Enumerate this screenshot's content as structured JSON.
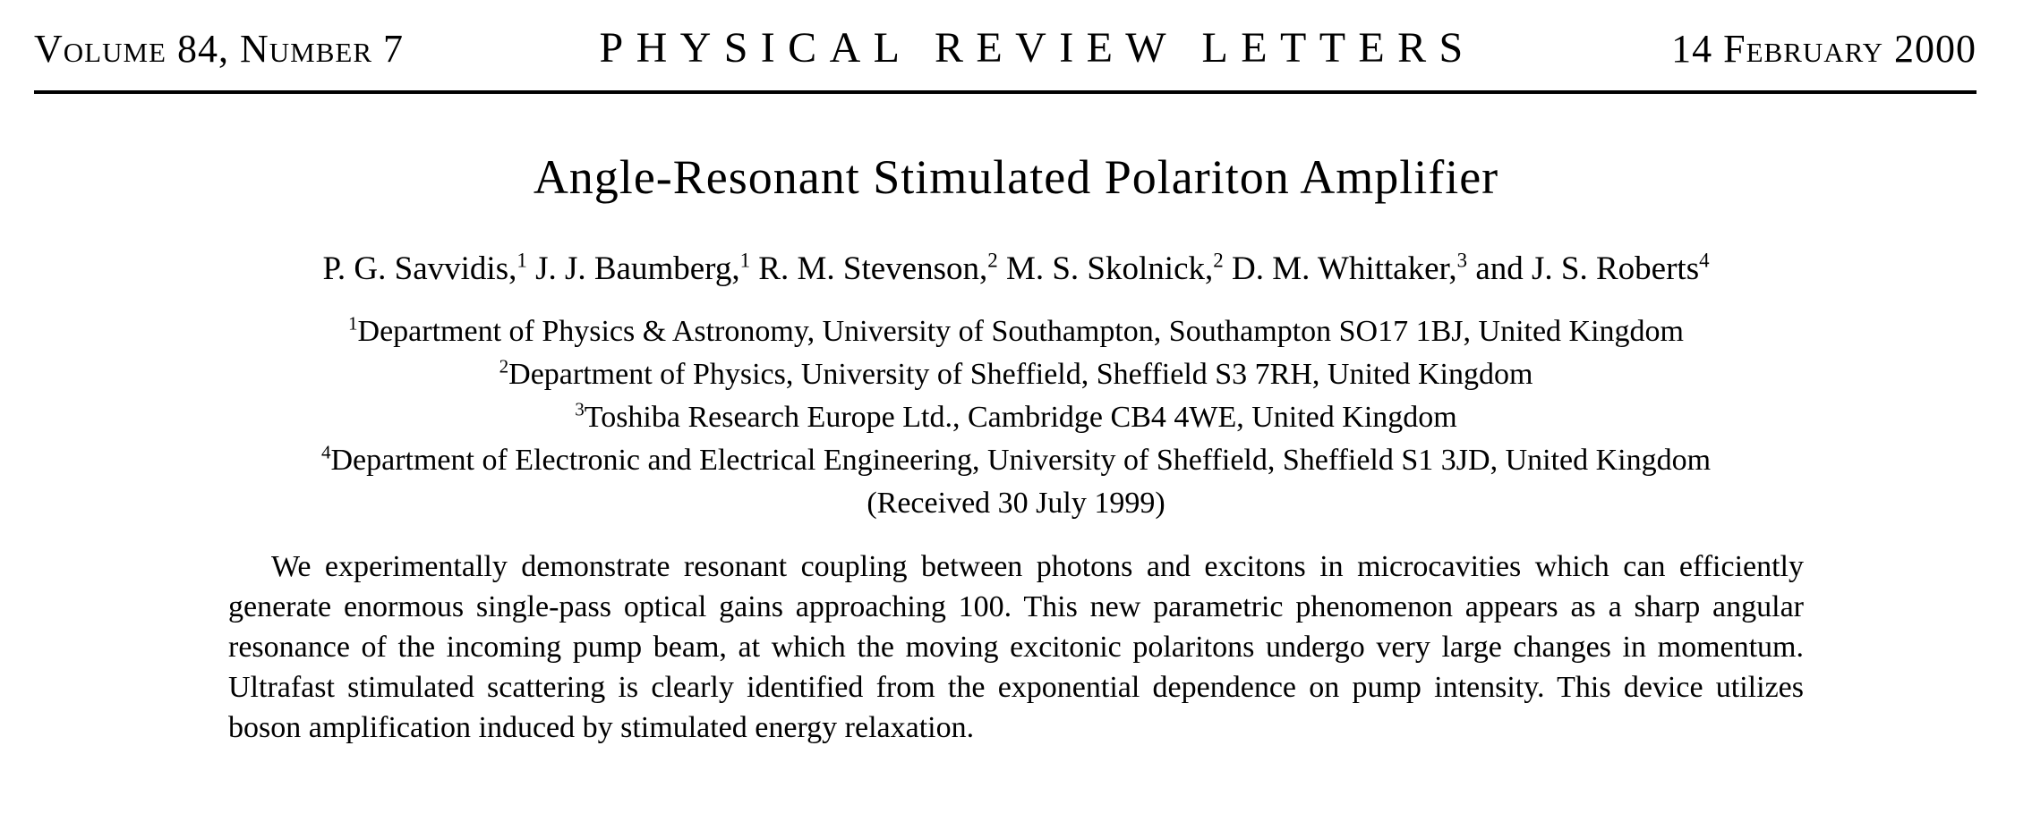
{
  "colors": {
    "paper": "#ffffff",
    "ink": "#000000"
  },
  "masthead": {
    "volume_issue": "Volume 84, Number 7",
    "journal_title": "PHYSICAL REVIEW LETTERS",
    "issue_date": "14 February 2000"
  },
  "article": {
    "title": "Angle-Resonant Stimulated Polariton Amplifier",
    "authors": [
      {
        "text": "P. G. Savvidis,",
        "sup": "1"
      },
      {
        "text": "J. J. Baumberg,",
        "sup": "1"
      },
      {
        "text": "R. M. Stevenson,",
        "sup": "2"
      },
      {
        "text": "M. S. Skolnick,",
        "sup": "2"
      },
      {
        "text": "D. M. Whittaker,",
        "sup": "3"
      },
      {
        "text": "and J. S. Roberts",
        "sup": "4"
      }
    ],
    "affiliations": [
      {
        "sup": "1",
        "text": "Department of Physics & Astronomy, University of Southampton, Southampton SO17 1BJ, United Kingdom"
      },
      {
        "sup": "2",
        "text": "Department of Physics, University of Sheffield, Sheffield S3 7RH, United Kingdom"
      },
      {
        "sup": "3",
        "text": "Toshiba Research Europe Ltd., Cambridge CB4 4WE, United Kingdom"
      },
      {
        "sup": "4",
        "text": "Department of Electronic and Electrical Engineering, University of Sheffield, Sheffield S1 3JD, United Kingdom"
      }
    ],
    "received": "(Received 30 July 1999)",
    "abstract": "We experimentally demonstrate resonant coupling between photons and excitons in microcavities which can efficiently generate enormous single-pass optical gains approaching 100. This new parametric phenomenon appears as a sharp angular resonance of the incoming pump beam, at which the moving excitonic polaritons undergo very large changes in momentum. Ultrafast stimulated scattering is clearly identified from the exponential dependence on pump intensity. This device utilizes boson amplification induced by stimulated energy relaxation."
  }
}
